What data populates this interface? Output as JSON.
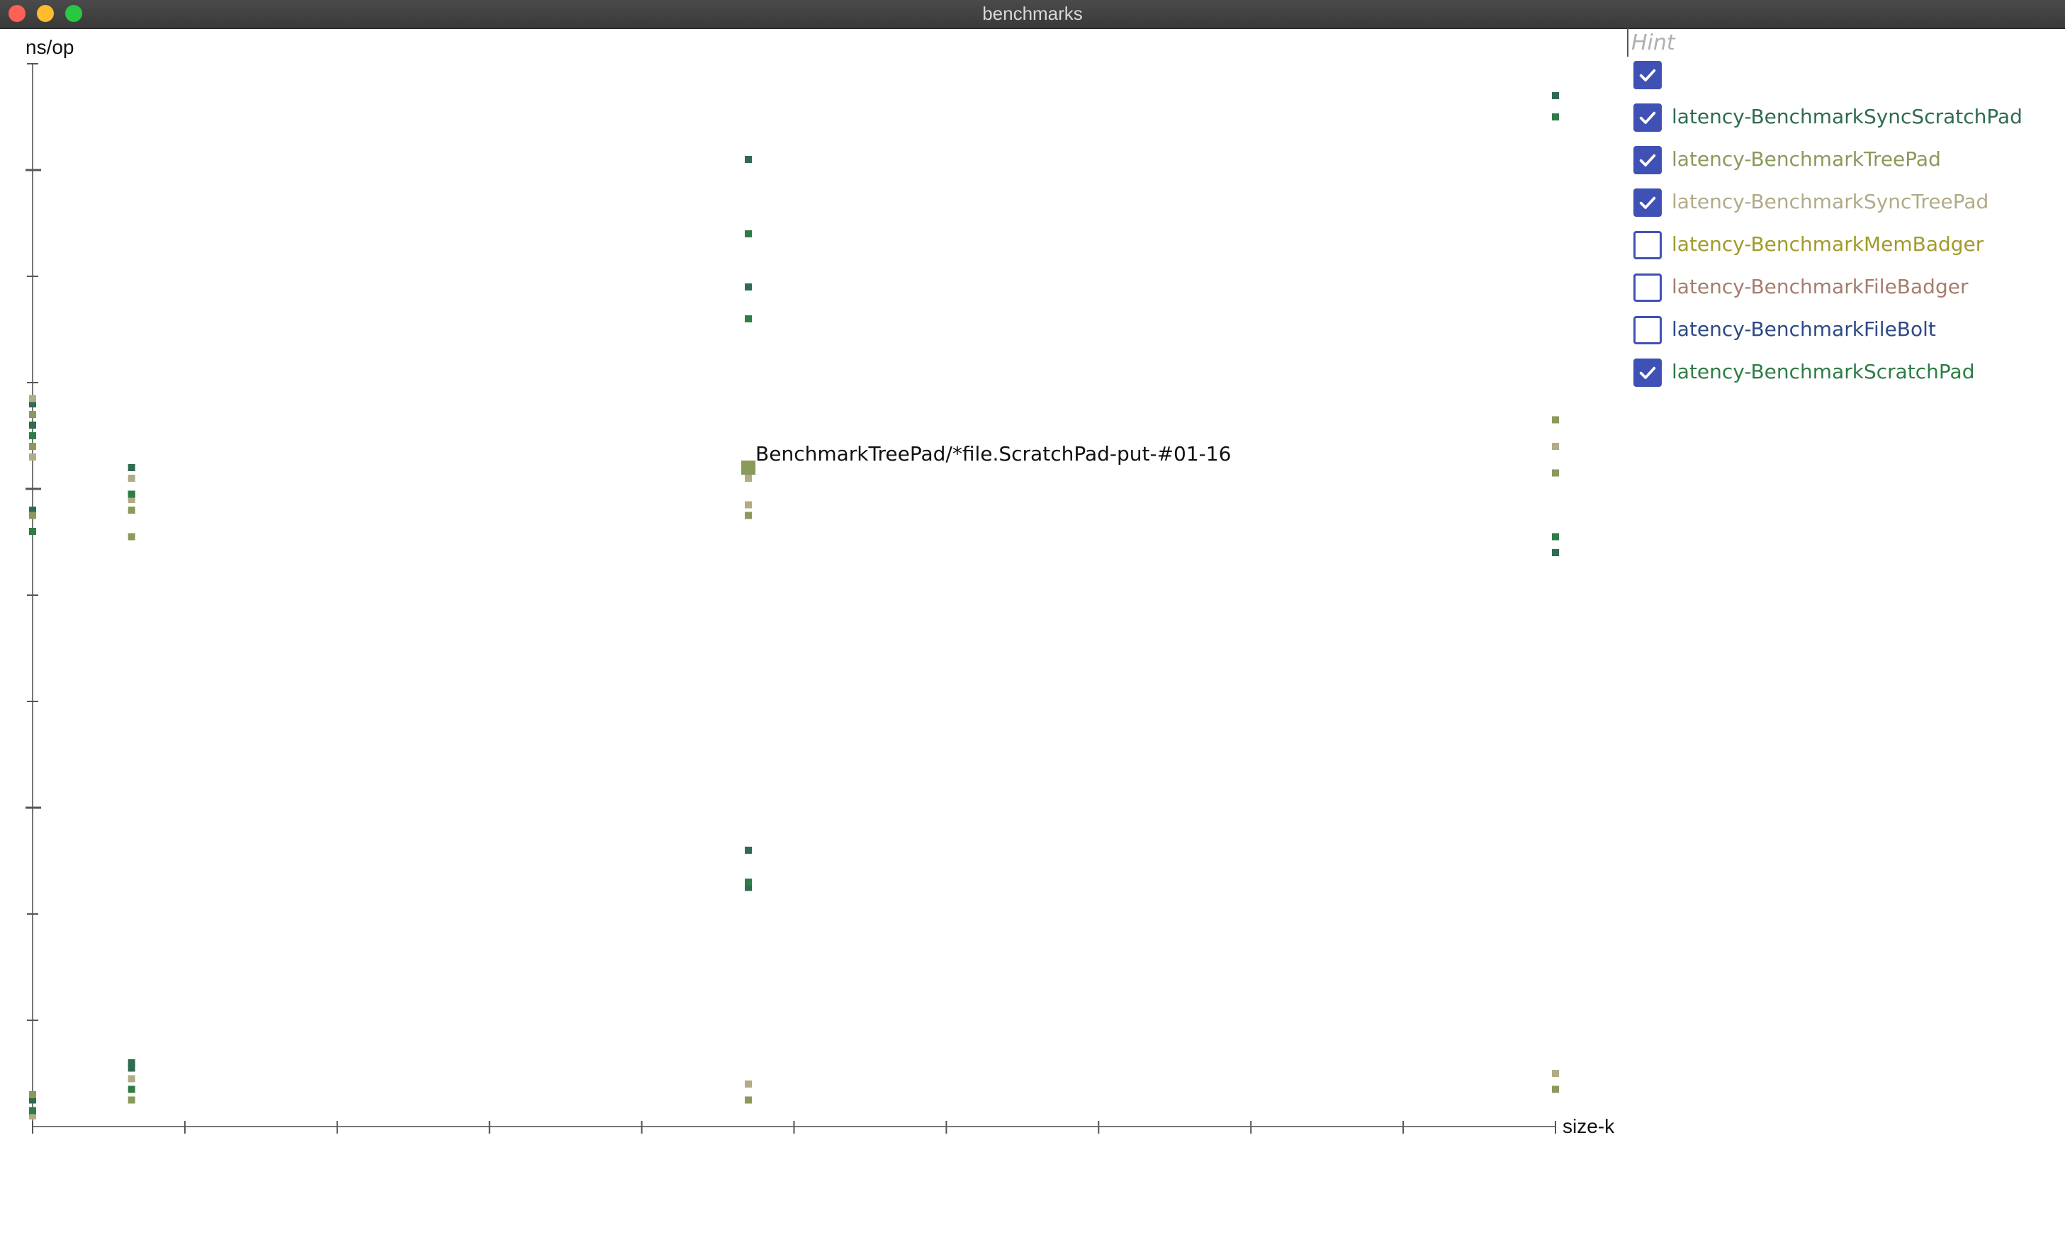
{
  "window": {
    "title": "benchmarks"
  },
  "hint": {
    "placeholder": "Hint"
  },
  "legend": {
    "items": [
      {
        "label": "",
        "checked": true,
        "color": "#2f6b4f"
      },
      {
        "label": "latency-BenchmarkSyncScratchPad",
        "checked": true,
        "color": "#2f6b4f"
      },
      {
        "label": "latency-BenchmarkTreePad",
        "checked": true,
        "color": "#8a9a5b"
      },
      {
        "label": "latency-BenchmarkSyncTreePad",
        "checked": true,
        "color": "#b2ab87"
      },
      {
        "label": "latency-BenchmarkMemBadger",
        "checked": false,
        "color": "#a39a2a"
      },
      {
        "label": "latency-BenchmarkFileBadger",
        "checked": false,
        "color": "#a57d6e"
      },
      {
        "label": "latency-BenchmarkFileBolt",
        "checked": false,
        "color": "#2e4a86"
      },
      {
        "label": "latency-BenchmarkScratchPad",
        "checked": true,
        "color": "#2e7d46"
      }
    ]
  },
  "chart_data": {
    "type": "scatter",
    "ylabel": "ns/op",
    "xlabel": "size-k",
    "x_ticks": 10,
    "y_ticks": 10,
    "tooltip": {
      "text": "BenchmarkTreePad/*file.ScratchPad-put-#01-16",
      "x": 4.7,
      "y": 6.2
    },
    "series": [
      {
        "legend_index": 1,
        "color": "#2f6b4f",
        "points": [
          [
            0,
            6.8
          ],
          [
            0,
            6.6
          ],
          [
            0,
            5.8
          ],
          [
            0.65,
            6.2
          ],
          [
            0.65,
            5.95
          ],
          [
            4.7,
            9.1
          ],
          [
            4.7,
            7.9
          ],
          [
            4.7,
            2.6
          ],
          [
            4.7,
            2.25
          ],
          [
            10,
            9.7
          ],
          [
            10,
            5.4
          ],
          [
            0,
            0.25
          ],
          [
            0.65,
            0.6
          ],
          [
            0.65,
            0.55
          ]
        ]
      },
      {
        "legend_index": 2,
        "color": "#8a9a5b",
        "points": [
          [
            0,
            6.7
          ],
          [
            0,
            6.4
          ],
          [
            0,
            5.75
          ],
          [
            0.65,
            5.8
          ],
          [
            0.65,
            5.55
          ],
          [
            4.7,
            6.2
          ],
          [
            4.7,
            5.75
          ],
          [
            10,
            6.65
          ],
          [
            10,
            6.15
          ],
          [
            0,
            0.3
          ],
          [
            0.65,
            0.25
          ],
          [
            4.7,
            0.25
          ],
          [
            10,
            0.35
          ]
        ]
      },
      {
        "legend_index": 3,
        "color": "#b2ab87",
        "points": [
          [
            0,
            6.85
          ],
          [
            0,
            6.3
          ],
          [
            0.65,
            6.1
          ],
          [
            0.65,
            5.9
          ],
          [
            4.7,
            6.1
          ],
          [
            4.7,
            5.85
          ],
          [
            10,
            6.4
          ],
          [
            10,
            0.5
          ],
          [
            4.7,
            0.4
          ],
          [
            0.65,
            0.45
          ],
          [
            0,
            0.1
          ]
        ]
      },
      {
        "legend_index": 7,
        "color": "#2e7d46",
        "points": [
          [
            0,
            6.5
          ],
          [
            0,
            5.6
          ],
          [
            0.65,
            5.95
          ],
          [
            4.7,
            8.4
          ],
          [
            4.7,
            7.6
          ],
          [
            4.7,
            2.3
          ],
          [
            10,
            9.5
          ],
          [
            10,
            5.55
          ],
          [
            0,
            0.15
          ],
          [
            0.65,
            0.35
          ]
        ]
      }
    ]
  }
}
